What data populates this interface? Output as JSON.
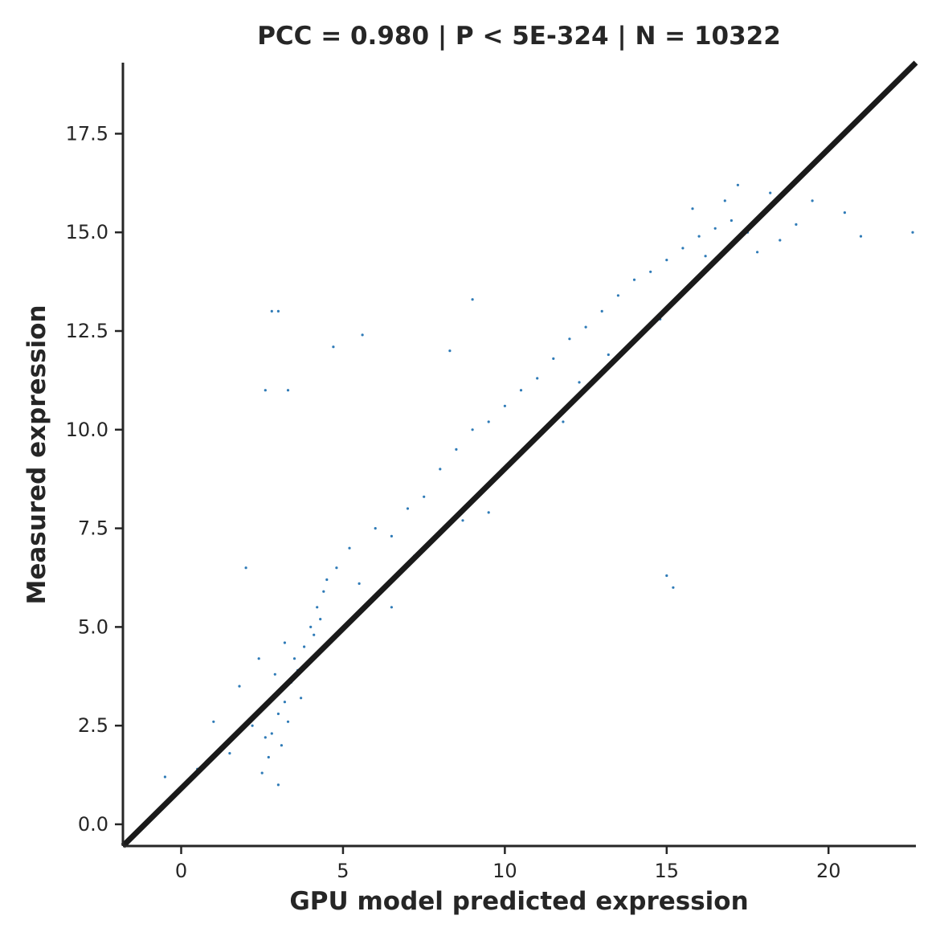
{
  "chart_data": {
    "type": "scatter",
    "title": "PCC =  0.980 | P <  5E-324 | N = 10322",
    "xlabel": "GPU model predicted expression",
    "ylabel": "Measured expression",
    "xlim": [
      -1.8,
      22.7
    ],
    "ylim": [
      -0.55,
      19.3
    ],
    "xticks": [
      0,
      5,
      10,
      15,
      20
    ],
    "xtick_labels": [
      "0",
      "5",
      "10",
      "15",
      "20"
    ],
    "yticks": [
      0.0,
      2.5,
      5.0,
      7.5,
      10.0,
      12.5,
      15.0,
      17.5
    ],
    "ytick_labels": [
      "0.0",
      "2.5",
      "5.0",
      "7.5",
      "10.0",
      "12.5",
      "15.0",
      "17.5"
    ],
    "grid": false,
    "point_color": "#0a64aa",
    "line_color": "#1a1a1a",
    "identity_line": {
      "x": [
        -1.8,
        22.7
      ],
      "y": [
        -0.55,
        19.3
      ]
    },
    "series": [
      {
        "points": [
          [
            3.0,
            2.8
          ],
          [
            3.2,
            3.1
          ],
          [
            2.8,
            2.3
          ],
          [
            3.4,
            3.6
          ],
          [
            3.1,
            2.0
          ],
          [
            2.9,
            3.3
          ],
          [
            3.5,
            4.2
          ],
          [
            3.3,
            2.6
          ],
          [
            2.7,
            1.7
          ],
          [
            3.6,
            3.9
          ],
          [
            3.8,
            4.5
          ],
          [
            4.0,
            5.0
          ],
          [
            4.2,
            5.5
          ],
          [
            4.4,
            5.9
          ],
          [
            3.9,
            4.1
          ],
          [
            2.6,
            2.2
          ],
          [
            2.5,
            1.3
          ],
          [
            3.0,
            1.0
          ],
          [
            3.7,
            3.2
          ],
          [
            4.1,
            4.8
          ],
          [
            4.5,
            6.2
          ],
          [
            4.3,
            5.2
          ],
          [
            3.2,
            4.6
          ],
          [
            2.9,
            3.8
          ],
          [
            2.2,
            2.5
          ],
          [
            1.5,
            1.8
          ],
          [
            1.0,
            2.6
          ],
          [
            0.5,
            1.4
          ],
          [
            -0.5,
            1.2
          ],
          [
            1.8,
            3.5
          ],
          [
            2.4,
            4.2
          ],
          [
            2.0,
            6.5
          ],
          [
            4.8,
            6.5
          ],
          [
            5.2,
            7.0
          ],
          [
            5.5,
            6.1
          ],
          [
            6.0,
            7.5
          ],
          [
            6.5,
            7.3
          ],
          [
            7.0,
            8.0
          ],
          [
            7.5,
            8.3
          ],
          [
            8.0,
            9.0
          ],
          [
            8.5,
            9.5
          ],
          [
            9.0,
            10.0
          ],
          [
            9.5,
            10.2
          ],
          [
            10.0,
            10.6
          ],
          [
            10.5,
            11.0
          ],
          [
            11.0,
            11.3
          ],
          [
            11.5,
            11.8
          ],
          [
            12.0,
            12.3
          ],
          [
            12.5,
            12.6
          ],
          [
            13.0,
            13.0
          ],
          [
            13.5,
            13.4
          ],
          [
            14.0,
            13.8
          ],
          [
            14.5,
            14.0
          ],
          [
            15.0,
            14.3
          ],
          [
            15.5,
            14.6
          ],
          [
            16.0,
            14.9
          ],
          [
            16.5,
            15.1
          ],
          [
            17.0,
            15.3
          ],
          [
            17.5,
            15.0
          ],
          [
            18.0,
            15.5
          ],
          [
            18.5,
            14.8
          ],
          [
            19.0,
            15.2
          ],
          [
            17.2,
            16.2
          ],
          [
            16.8,
            15.8
          ],
          [
            15.8,
            15.6
          ],
          [
            16.2,
            14.4
          ],
          [
            17.8,
            14.5
          ],
          [
            18.2,
            16.0
          ],
          [
            19.5,
            15.8
          ],
          [
            20.5,
            15.5
          ],
          [
            21.0,
            14.9
          ],
          [
            22.6,
            15.0
          ],
          [
            6.5,
            5.5
          ],
          [
            7.2,
            6.8
          ],
          [
            9.5,
            7.9
          ],
          [
            10.3,
            9.3
          ],
          [
            8.7,
            7.7
          ],
          [
            11.8,
            10.2
          ],
          [
            12.3,
            11.2
          ],
          [
            13.2,
            11.9
          ],
          [
            14.8,
            12.8
          ],
          [
            15.0,
            6.3
          ],
          [
            15.2,
            6.0
          ],
          [
            2.8,
            13.0
          ],
          [
            3.0,
            13.0
          ],
          [
            5.6,
            12.4
          ],
          [
            4.7,
            12.1
          ],
          [
            2.6,
            11.0
          ],
          [
            3.3,
            11.0
          ],
          [
            9.0,
            13.3
          ],
          [
            8.3,
            12.0
          ]
        ]
      }
    ]
  }
}
